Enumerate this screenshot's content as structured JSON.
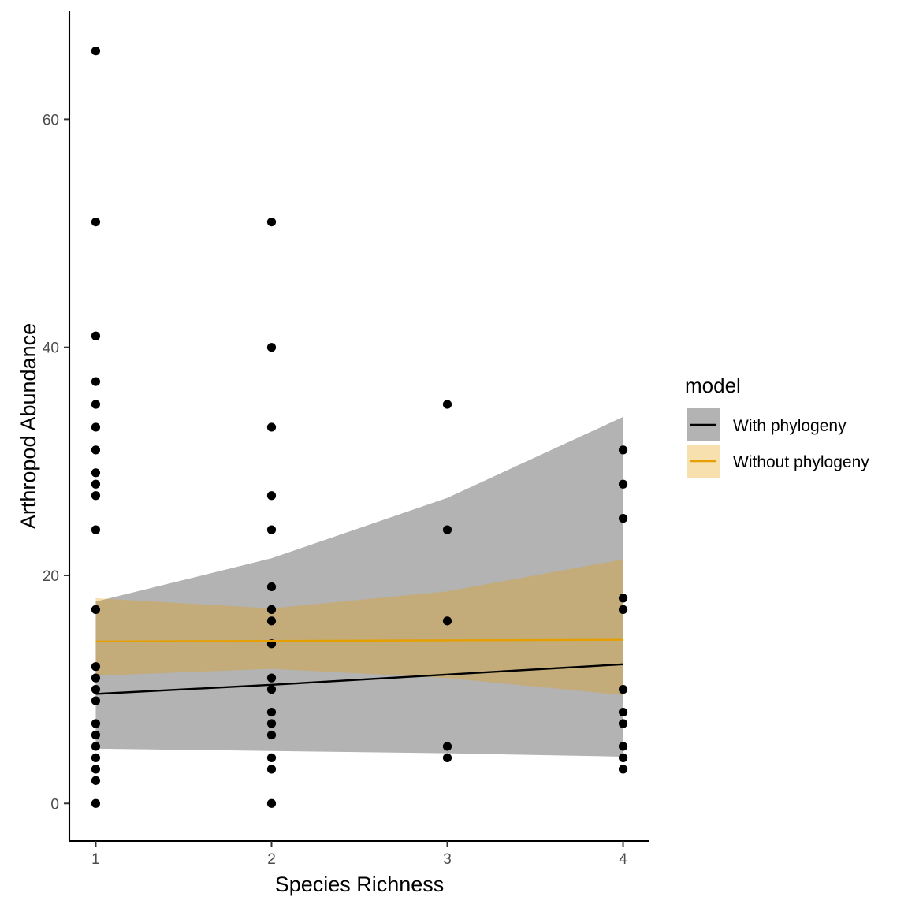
{
  "chart_data": {
    "type": "scatter",
    "xlabel": "Species Richness",
    "ylabel": "Arthropod Abundance",
    "xlim": [
      0.85,
      4.15
    ],
    "ylim": [
      -3.3,
      69.5
    ],
    "x_ticks": [
      1,
      2,
      3,
      4
    ],
    "y_ticks": [
      0,
      20,
      40,
      60
    ],
    "grid": false,
    "legend": {
      "title": "model",
      "position": "right",
      "entries": [
        "With phylogeny",
        "Without phylogeny"
      ]
    },
    "points": {
      "color": "#000000",
      "data": [
        [
          1,
          66
        ],
        [
          1,
          51
        ],
        [
          1,
          41
        ],
        [
          1,
          37
        ],
        [
          1,
          35
        ],
        [
          1,
          33
        ],
        [
          1,
          31
        ],
        [
          1,
          29
        ],
        [
          1,
          28
        ],
        [
          1,
          27
        ],
        [
          1,
          24
        ],
        [
          1,
          17
        ],
        [
          1,
          12
        ],
        [
          1,
          11
        ],
        [
          1,
          10
        ],
        [
          1,
          9
        ],
        [
          1,
          7
        ],
        [
          1,
          6
        ],
        [
          1,
          5
        ],
        [
          1,
          4
        ],
        [
          1,
          3
        ],
        [
          1,
          2
        ],
        [
          1,
          0
        ],
        [
          2,
          51
        ],
        [
          2,
          40
        ],
        [
          2,
          33
        ],
        [
          2,
          27
        ],
        [
          2,
          24
        ],
        [
          2,
          19
        ],
        [
          2,
          17
        ],
        [
          2,
          16
        ],
        [
          2,
          14
        ],
        [
          2,
          11
        ],
        [
          2,
          10
        ],
        [
          2,
          8
        ],
        [
          2,
          7
        ],
        [
          2,
          6
        ],
        [
          2,
          4
        ],
        [
          2,
          3
        ],
        [
          2,
          0
        ],
        [
          3,
          35
        ],
        [
          3,
          24
        ],
        [
          3,
          16
        ],
        [
          3,
          5
        ],
        [
          3,
          4
        ],
        [
          4,
          31
        ],
        [
          4,
          28
        ],
        [
          4,
          25
        ],
        [
          4,
          18
        ],
        [
          4,
          17
        ],
        [
          4,
          10
        ],
        [
          4,
          8
        ],
        [
          4,
          7
        ],
        [
          4,
          5
        ],
        [
          4,
          4
        ],
        [
          4,
          3
        ]
      ]
    },
    "series": [
      {
        "name": "With phylogeny",
        "line_color": "#000000",
        "ribbon_color": "#b3b3b3",
        "ribbon_opacity": 1.0,
        "x": [
          1,
          2,
          3,
          4
        ],
        "y": [
          9.6,
          10.4,
          11.3,
          12.2
        ],
        "lower": [
          4.8,
          4.6,
          4.4,
          4.1
        ],
        "upper": [
          17.7,
          21.5,
          26.8,
          33.9
        ]
      },
      {
        "name": "Without phylogeny",
        "line_color": "#e69f00",
        "ribbon_color": "#e69f00",
        "ribbon_opacity": 0.32,
        "x": [
          1,
          2,
          3,
          4
        ],
        "y": [
          14.2,
          14.25,
          14.3,
          14.35
        ],
        "lower": [
          11.2,
          11.8,
          11.0,
          9.5
        ],
        "upper": [
          18.0,
          17.1,
          18.6,
          21.4
        ]
      }
    ]
  }
}
